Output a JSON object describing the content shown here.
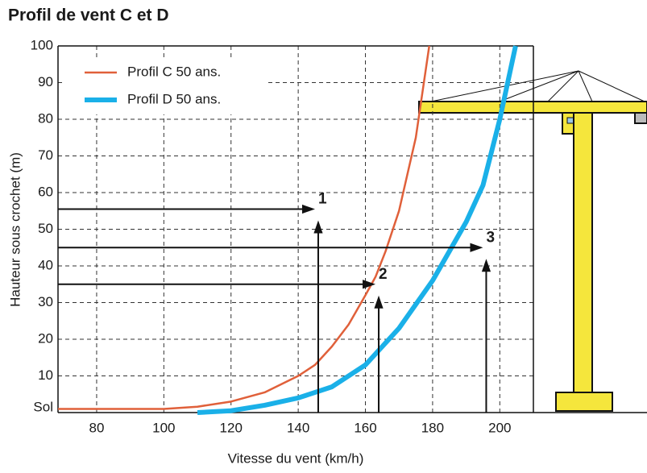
{
  "chart_data": {
    "type": "line",
    "title": "Profil de vent C et D",
    "x_label": "Vitesse du vent (km/h)",
    "y_label": "Hauteur sous crochet (m)",
    "xlim": [
      68.5,
      210
    ],
    "ylim": [
      0,
      100
    ],
    "xticks": [
      80,
      100,
      120,
      140,
      160,
      180,
      200
    ],
    "yticks": [
      {
        "value": 0,
        "label": "Sol"
      },
      10,
      20,
      30,
      40,
      50,
      60,
      70,
      80,
      90,
      100
    ],
    "grid": true,
    "legend": "upper left",
    "series": [
      {
        "name": "Profil C 50 ans.",
        "color": "#e0603a",
        "width": 2.5,
        "x": [
          68.5,
          100,
          110,
          120,
          130,
          140,
          145,
          150,
          155,
          160,
          163,
          166,
          170,
          175,
          179
        ],
        "values": [
          1,
          1,
          1.6,
          3,
          5.5,
          10,
          13,
          18,
          24,
          32,
          37,
          44,
          55,
          75,
          100
        ]
      },
      {
        "name": "Profil D 50 ans.",
        "color": "#1ab0e8",
        "width": 6,
        "x": [
          110,
          120,
          130,
          140,
          150,
          160,
          170,
          180,
          190,
          195,
          200,
          204.7
        ],
        "values": [
          0,
          0.5,
          2,
          4,
          7,
          13,
          23,
          36,
          52,
          62,
          80,
          100
        ]
      }
    ],
    "annotations": [
      {
        "label": "1",
        "x": 145,
        "y": 55.5
      },
      {
        "label": "2",
        "x": 163,
        "y": 35
      },
      {
        "label": "3",
        "x": 195,
        "y": 45
      }
    ]
  }
}
